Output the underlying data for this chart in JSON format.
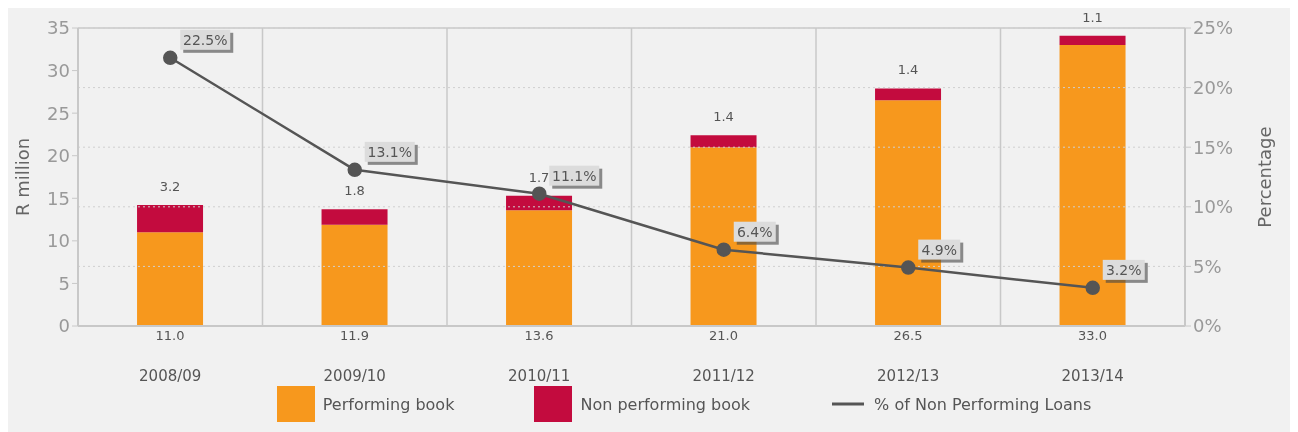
{
  "chart_data": {
    "type": "bar",
    "stacked": true,
    "categories": [
      "2008/09",
      "2009/10",
      "2010/11",
      "2011/12",
      "2012/13",
      "2013/14"
    ],
    "ylabel": "R million",
    "y2label": "Percentage",
    "ylim": [
      0,
      35
    ],
    "yticks": [
      0,
      5,
      10,
      15,
      20,
      25,
      30,
      35
    ],
    "y2lim": [
      0,
      25
    ],
    "y2ticks": [
      {
        "value": 0,
        "label": "0%"
      },
      {
        "value": 5,
        "label": "5%"
      },
      {
        "value": 10,
        "label": "10%"
      },
      {
        "value": 15,
        "label": "15%"
      },
      {
        "value": 20,
        "label": "20%"
      },
      {
        "value": 25,
        "label": "25%"
      }
    ],
    "grid": true,
    "legend": "bottom",
    "series": [
      {
        "name": "Performing book",
        "color": "#f7981d",
        "values": [
          11.0,
          11.9,
          13.6,
          21.0,
          26.5,
          33.0
        ],
        "value_labels": [
          "11.0",
          "11.9",
          "13.6",
          "21.0",
          "26.5",
          "33.0"
        ]
      },
      {
        "name": "Non performing book",
        "color": "#c30b3e",
        "values": [
          3.2,
          1.8,
          1.7,
          1.4,
          1.4,
          1.1
        ],
        "value_labels": [
          "3.2",
          "1.8",
          "1.7",
          "1.4",
          "1.4",
          "1.1"
        ]
      },
      {
        "name": "% of Non Performing Loans",
        "type": "line",
        "axis": "y2",
        "color": "#555555",
        "marker": "circle",
        "values": [
          22.5,
          13.1,
          11.1,
          6.4,
          4.9,
          3.2
        ],
        "value_labels": [
          "22.5%",
          "13.1%",
          "11.1%",
          "6.4%",
          "4.9%",
          "3.2%"
        ]
      }
    ]
  }
}
